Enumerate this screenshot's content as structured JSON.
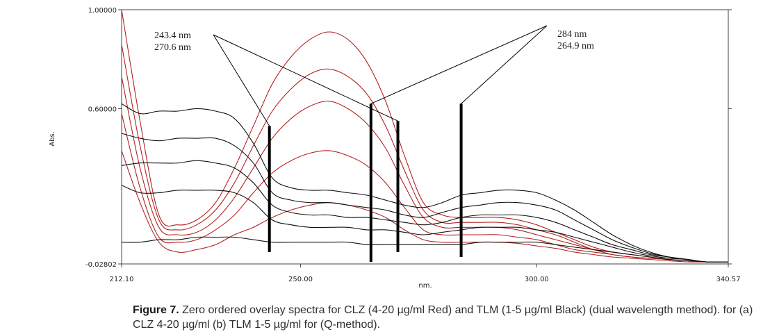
{
  "chart_data": {
    "type": "line",
    "title": "",
    "xlabel": "nm.",
    "ylabel": "Abs.",
    "xlim": [
      212.1,
      340.57
    ],
    "ylim": [
      -0.02802,
      1.0
    ],
    "x_tick_labels": [
      "212.10",
      "250.00",
      "300.00",
      "340.57"
    ],
    "x_tick_values": [
      212.1,
      250.0,
      300.0,
      340.57
    ],
    "y_tick_labels": [
      "1.00000",
      "0.60000",
      "-0.02802"
    ],
    "y_tick_values": [
      1.0,
      0.6,
      -0.02802
    ],
    "grid": false,
    "colors": {
      "clz": "#b22222",
      "tlm": "#111111",
      "marker": "#000000"
    },
    "x": [
      212.1,
      216,
      220,
      224,
      228,
      232,
      236,
      240,
      244,
      248,
      252,
      256,
      260,
      264,
      268,
      272,
      276,
      280,
      284,
      288,
      292,
      296,
      300,
      304,
      308,
      312,
      316,
      320,
      324,
      328,
      332,
      336,
      340.57
    ],
    "series": [
      {
        "group": "CLZ",
        "values": [
          1.0,
          0.55,
          0.17,
          0.13,
          0.15,
          0.22,
          0.36,
          0.53,
          0.7,
          0.81,
          0.88,
          0.91,
          0.88,
          0.79,
          0.63,
          0.41,
          0.22,
          0.17,
          0.16,
          0.16,
          0.16,
          0.15,
          0.13,
          0.1,
          0.07,
          0.04,
          0.02,
          0.01,
          0.0,
          -0.01,
          -0.015,
          -0.02,
          -0.02
        ]
      },
      {
        "group": "CLZ",
        "values": [
          0.86,
          0.45,
          0.15,
          0.11,
          0.13,
          0.19,
          0.3,
          0.45,
          0.59,
          0.68,
          0.74,
          0.76,
          0.73,
          0.66,
          0.53,
          0.35,
          0.19,
          0.14,
          0.14,
          0.14,
          0.14,
          0.13,
          0.11,
          0.09,
          0.06,
          0.03,
          0.02,
          0.01,
          0.0,
          -0.01,
          -0.015,
          -0.02,
          -0.02
        ]
      },
      {
        "group": "CLZ",
        "values": [
          0.73,
          0.36,
          0.12,
          0.09,
          0.1,
          0.15,
          0.24,
          0.36,
          0.48,
          0.56,
          0.61,
          0.63,
          0.6,
          0.54,
          0.44,
          0.29,
          0.16,
          0.12,
          0.12,
          0.12,
          0.12,
          0.11,
          0.09,
          0.07,
          0.05,
          0.03,
          0.01,
          0.0,
          -0.005,
          -0.01,
          -0.015,
          -0.02,
          -0.02
        ]
      },
      {
        "group": "CLZ",
        "values": [
          0.58,
          0.28,
          0.08,
          0.06,
          0.07,
          0.11,
          0.17,
          0.26,
          0.34,
          0.39,
          0.42,
          0.43,
          0.41,
          0.37,
          0.3,
          0.2,
          0.11,
          0.09,
          0.09,
          0.09,
          0.09,
          0.08,
          0.07,
          0.05,
          0.03,
          0.02,
          0.01,
          0.0,
          -0.005,
          -0.01,
          -0.015,
          -0.02,
          -0.02
        ]
      },
      {
        "group": "CLZ",
        "values": [
          0.43,
          0.22,
          0.06,
          0.02,
          0.03,
          0.05,
          0.09,
          0.12,
          0.16,
          0.19,
          0.21,
          0.22,
          0.21,
          0.19,
          0.16,
          0.11,
          0.07,
          0.06,
          0.06,
          0.06,
          0.06,
          0.055,
          0.045,
          0.035,
          0.02,
          0.01,
          0.0,
          -0.005,
          -0.01,
          -0.015,
          -0.02,
          -0.02,
          -0.02
        ]
      },
      {
        "group": "TLM",
        "values": [
          0.62,
          0.58,
          0.59,
          0.59,
          0.6,
          0.59,
          0.56,
          0.46,
          0.32,
          0.28,
          0.27,
          0.27,
          0.26,
          0.25,
          0.23,
          0.21,
          0.2,
          0.22,
          0.25,
          0.26,
          0.27,
          0.27,
          0.26,
          0.23,
          0.19,
          0.14,
          0.09,
          0.05,
          0.02,
          0.0,
          -0.01,
          -0.02,
          -0.02
        ]
      },
      {
        "group": "TLM",
        "values": [
          0.5,
          0.48,
          0.47,
          0.48,
          0.48,
          0.48,
          0.45,
          0.38,
          0.26,
          0.23,
          0.22,
          0.22,
          0.21,
          0.2,
          0.19,
          0.17,
          0.16,
          0.18,
          0.2,
          0.21,
          0.22,
          0.22,
          0.21,
          0.19,
          0.15,
          0.11,
          0.07,
          0.04,
          0.015,
          0.0,
          -0.01,
          -0.02,
          -0.02
        ]
      },
      {
        "group": "TLM",
        "values": [
          0.37,
          0.38,
          0.38,
          0.38,
          0.39,
          0.38,
          0.36,
          0.3,
          0.21,
          0.18,
          0.17,
          0.17,
          0.16,
          0.16,
          0.15,
          0.14,
          0.13,
          0.14,
          0.16,
          0.17,
          0.17,
          0.17,
          0.16,
          0.14,
          0.11,
          0.08,
          0.05,
          0.03,
          0.01,
          0.0,
          -0.01,
          -0.02,
          -0.02
        ]
      },
      {
        "group": "TLM",
        "values": [
          0.29,
          0.26,
          0.26,
          0.27,
          0.27,
          0.27,
          0.26,
          0.22,
          0.15,
          0.13,
          0.12,
          0.12,
          0.12,
          0.11,
          0.11,
          0.1,
          0.09,
          0.1,
          0.11,
          0.12,
          0.12,
          0.12,
          0.11,
          0.1,
          0.08,
          0.06,
          0.04,
          0.02,
          0.005,
          -0.005,
          -0.01,
          -0.02,
          -0.02
        ]
      },
      {
        "group": "TLM",
        "values": [
          0.06,
          0.06,
          0.07,
          0.07,
          0.08,
          0.08,
          0.08,
          0.07,
          0.06,
          0.06,
          0.06,
          0.06,
          0.06,
          0.05,
          0.05,
          0.05,
          0.05,
          0.05,
          0.05,
          0.06,
          0.06,
          0.06,
          0.06,
          0.05,
          0.04,
          0.03,
          0.02,
          0.01,
          0.0,
          -0.01,
          -0.015,
          -0.02,
          -0.02
        ]
      }
    ],
    "markers": [
      {
        "x": 243.4,
        "ymax": 0.53,
        "ymin": 0.02
      },
      {
        "x": 264.9,
        "ymax": 0.62,
        "ymin": -0.02
      },
      {
        "x": 270.6,
        "ymax": 0.55,
        "ymin": 0.02
      },
      {
        "x": 284.0,
        "ymax": 0.62,
        "ymin": 0.0
      }
    ],
    "annotations": [
      {
        "lines": [
          "243.4 nm",
          "270.6 nm"
        ],
        "points_to": [
          243.4,
          270.6
        ]
      },
      {
        "lines": [
          "284 nm",
          "264.9 nm"
        ],
        "points_to": [
          264.9,
          284.0
        ]
      }
    ]
  },
  "caption": {
    "label": "Figure 7.",
    "text": " Zero ordered overlay spectra for CLZ (4-20 µg/ml Red) and TLM (1-5 µg/ml Black) (dual wavelength method). for (a) CLZ 4-20 µg/ml (b) TLM 1-5 µg/ml for (Q-method)."
  }
}
